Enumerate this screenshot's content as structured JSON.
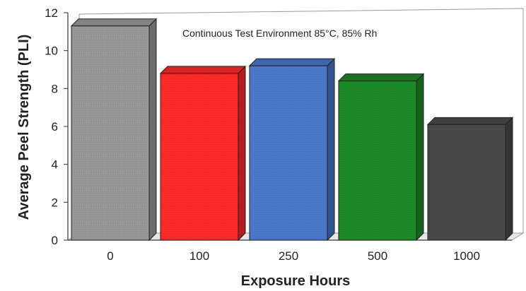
{
  "chart_data": {
    "type": "bar",
    "title": "",
    "xlabel": "Exposure Hours",
    "ylabel": "Average Peel Strength (PLI)",
    "annotation": "Continuous Test Environment  85°C, 85% Rh",
    "categories": [
      "0",
      "100",
      "250",
      "500",
      "1000"
    ],
    "values": [
      11.3,
      8.8,
      9.2,
      8.4,
      6.1
    ],
    "colors": [
      "#9a9a9a",
      "#ff2a2a",
      "#4a78cc",
      "#1e8a28",
      "#4a4a4a"
    ],
    "ylim": [
      0,
      12
    ],
    "yticks": [
      "0",
      "2",
      "4",
      "6",
      "8",
      "10",
      "12"
    ],
    "grid": false,
    "style": "3d-bar"
  }
}
